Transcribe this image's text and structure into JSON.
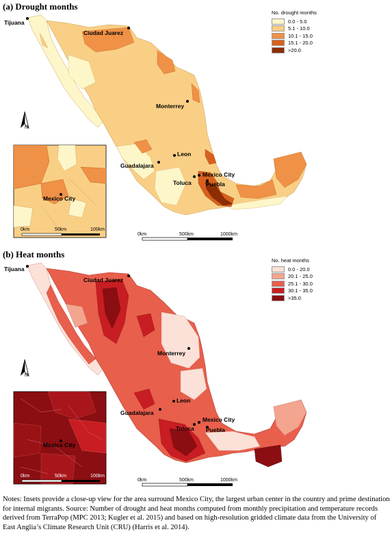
{
  "panels": [
    {
      "id": "a",
      "label": "(a)",
      "title": "Drought months",
      "legend_title": "No. drought months",
      "legend": [
        {
          "label": "0.0 - 5.0",
          "color": "#fdf6c9"
        },
        {
          "label": "5.1 - 10.0",
          "color": "#f9cf86"
        },
        {
          "label": "10.1 - 15.0",
          "color": "#ef9146"
        },
        {
          "label": "15.1 - 20.0",
          "color": "#d7601d"
        },
        {
          "label": ">20.0",
          "color": "#8c2d04"
        }
      ]
    },
    {
      "id": "b",
      "label": "(b)",
      "title": "Heat months",
      "legend_title": "No. heat months",
      "legend": [
        {
          "label": "0.0 - 20.0",
          "color": "#fbe1d8"
        },
        {
          "label": "20.1 - 25.0",
          "color": "#f3a590"
        },
        {
          "label": "25.1 - 30.0",
          "color": "#e85f4c"
        },
        {
          "label": "30.1 - 35.0",
          "color": "#c81d22"
        },
        {
          "label": ">35.0",
          "color": "#8a0e12"
        }
      ]
    }
  ],
  "cities": {
    "tijuana": "Tijuana",
    "ciudad_juarez": "Ciudad Juarez",
    "monterrey": "Monterrey",
    "leon": "Leon",
    "guadalajara": "Guadalajara",
    "mexico_city": "Mexico City",
    "toluca": "Toluca",
    "puebla": "Puebla"
  },
  "north_arrow": "N",
  "inset_scale": {
    "start": "0km",
    "mid": "50km",
    "end": "100km"
  },
  "main_scale": {
    "start": "0km",
    "mid": "500km",
    "end": "1000km"
  },
  "notes": "Notes: Insets provide a close-up view for the area surround Mexico City, the largest urban center in the country and prime destination for internal migrants. Source: Number of drought and heat months computed from monthly precipitation and temperature records derived from TerraPop (MPC 2013; Kugler et al. 2015) and based on high-resolution gridded climate data from the University of East Anglia’s Climate Research Unit (CRU) (Harris et al. 2014)."
}
